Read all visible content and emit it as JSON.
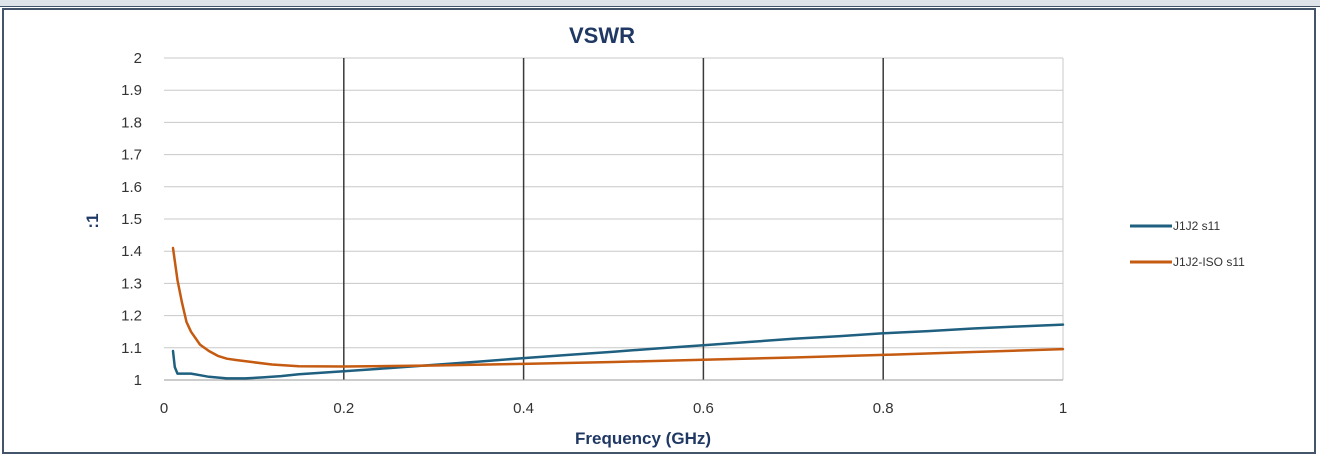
{
  "chart_data": {
    "type": "line",
    "title": "VSWR",
    "xlabel": "Frequency (GHz)",
    "ylabel": ":1",
    "xlim": [
      0,
      1
    ],
    "ylim": [
      1,
      2
    ],
    "x_ticks": [
      "0",
      "0.2",
      "0.4",
      "0.6",
      "0.8",
      "1"
    ],
    "y_ticks": [
      "1",
      "1.1",
      "1.2",
      "1.3",
      "1.4",
      "1.5",
      "1.6",
      "1.7",
      "1.8",
      "1.9",
      "2"
    ],
    "grid": true,
    "legend_position": "right",
    "series": [
      {
        "name": "J1J2 s11",
        "color": "#1f5f7f",
        "x": [
          0.01,
          0.012,
          0.015,
          0.02,
          0.03,
          0.04,
          0.05,
          0.07,
          0.09,
          0.11,
          0.13,
          0.15,
          0.2,
          0.25,
          0.3,
          0.35,
          0.4,
          0.45,
          0.5,
          0.55,
          0.6,
          0.65,
          0.7,
          0.75,
          0.8,
          0.85,
          0.9,
          0.95,
          1.0
        ],
        "y": [
          1.09,
          1.04,
          1.02,
          1.02,
          1.02,
          1.015,
          1.01,
          1.005,
          1.005,
          1.008,
          1.012,
          1.018,
          1.027,
          1.037,
          1.047,
          1.057,
          1.068,
          1.078,
          1.088,
          1.098,
          1.108,
          1.118,
          1.128,
          1.136,
          1.145,
          1.152,
          1.16,
          1.166,
          1.172
        ]
      },
      {
        "name": "J1J2-ISO s11",
        "color": "#c55a11",
        "x": [
          0.01,
          0.012,
          0.015,
          0.02,
          0.025,
          0.03,
          0.04,
          0.05,
          0.06,
          0.07,
          0.08,
          0.1,
          0.12,
          0.15,
          0.2,
          0.3,
          0.4,
          0.5,
          0.6,
          0.7,
          0.8,
          0.9,
          1.0
        ],
        "y": [
          1.41,
          1.37,
          1.31,
          1.24,
          1.18,
          1.15,
          1.11,
          1.09,
          1.075,
          1.066,
          1.062,
          1.055,
          1.048,
          1.043,
          1.042,
          1.045,
          1.05,
          1.056,
          1.063,
          1.07,
          1.078,
          1.087,
          1.096
        ]
      }
    ]
  }
}
